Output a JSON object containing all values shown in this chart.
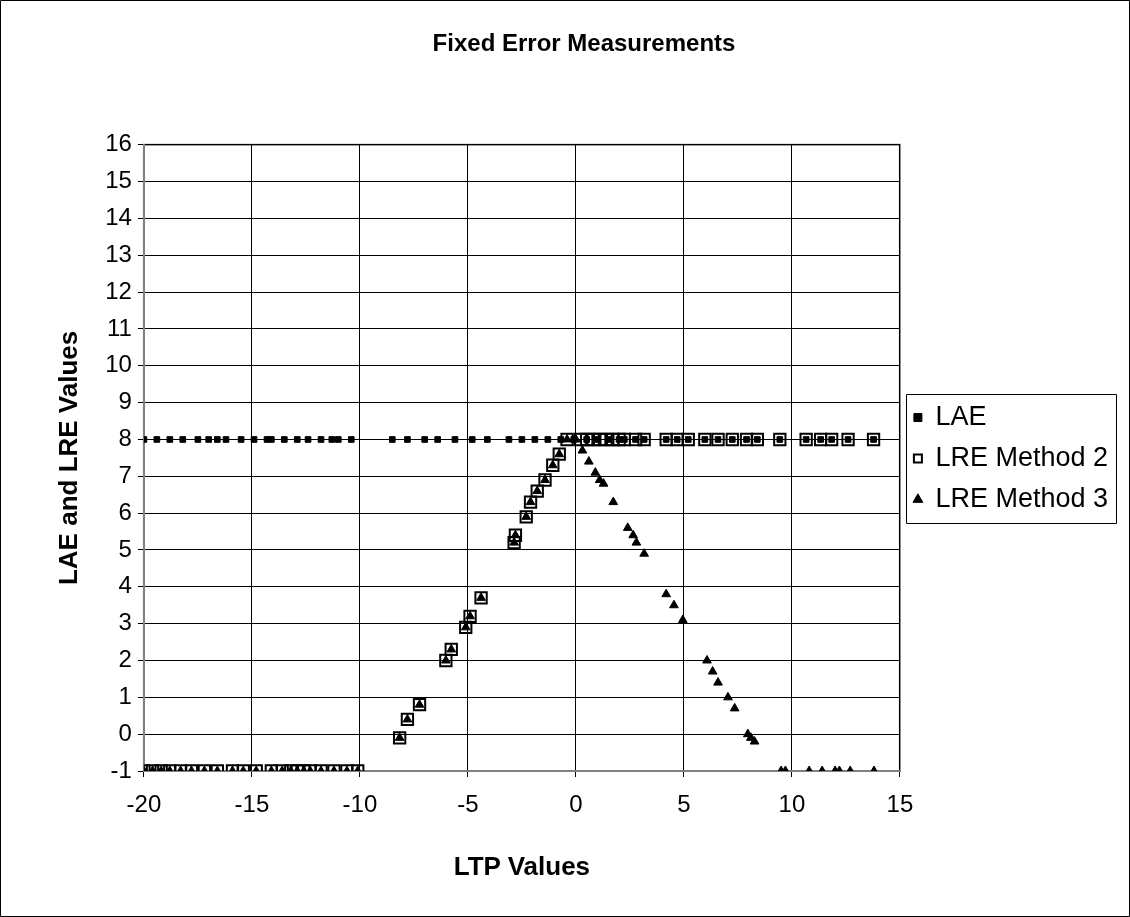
{
  "chart_data": {
    "type": "scatter",
    "title": "Fixed Error Measurements",
    "xlabel": "LTP Values",
    "ylabel": "LAE and LRE Values",
    "xlim": [
      -20,
      15
    ],
    "xticks": [
      -20,
      -15,
      -10,
      -5,
      0,
      5,
      10,
      15
    ],
    "ylim": [
      -1,
      16
    ],
    "yticks": [
      -1,
      0,
      1,
      2,
      3,
      4,
      5,
      6,
      7,
      8,
      9,
      10,
      11,
      12,
      13,
      14,
      15,
      16
    ],
    "grid": true,
    "legend": "right",
    "series": [
      {
        "name": "LAE",
        "color": "#000000",
        "marker": "square",
        "x": [
          -20,
          -19.4,
          -18.8,
          -18.2,
          -17.5,
          -17.0,
          -16.6,
          -16.2,
          -15.5,
          -14.9,
          -14.3,
          -14.1,
          -13.5,
          -12.9,
          -12.4,
          -11.8,
          -11.3,
          -11.0,
          -10.4,
          -8.5,
          -7.8,
          -7.0,
          -6.4,
          -5.6,
          -4.8,
          -4.1,
          -3.1,
          -2.5,
          -1.9,
          -1.3,
          -0.7,
          -0.1,
          0.5,
          1,
          1.5,
          2,
          2.24,
          2.76,
          3.16,
          4.18,
          4.69,
          5.2,
          5.97,
          6.58,
          7.24,
          7.9,
          8.4,
          9.44,
          10.66,
          11.33,
          11.84,
          12.6,
          13.78
        ],
        "values": [
          8,
          8,
          8,
          8,
          8,
          8,
          8,
          8,
          8,
          8,
          8,
          8,
          8,
          8,
          8,
          8,
          8,
          8,
          8,
          8,
          8,
          8,
          8,
          8,
          8,
          8,
          8,
          8,
          8,
          8,
          8,
          8,
          8,
          8,
          8,
          8,
          8,
          8,
          8,
          8,
          8,
          8,
          8,
          8,
          8,
          8,
          8,
          8,
          8,
          8,
          8,
          8,
          8
        ]
      },
      {
        "name": "LRE Method 2",
        "color": "#000000",
        "marker": "square",
        "x": [
          -20,
          -19.6,
          -19.2,
          -18.8,
          -18.3,
          -17.8,
          -17.2,
          -16.6,
          -15.9,
          -15.4,
          -14.8,
          -14.1,
          -13.6,
          -13.2,
          -12.9,
          -12.6,
          -12.3,
          -11.8,
          -11.2,
          -10.6,
          -10.1,
          -8.16,
          -7.8,
          -7.24,
          -6.02,
          -5.77,
          -5.1,
          -4.9,
          -4.39,
          -2.86,
          -2.8,
          -2.3,
          -2.1,
          -1.79,
          -1.43,
          -1.07,
          -0.77,
          -0.41,
          0.2,
          0.5,
          0.8,
          1.1,
          1.4,
          1.7,
          2.0,
          2.24,
          2.76,
          3.16,
          4.18,
          4.69,
          5.2,
          5.97,
          6.58,
          7.24,
          7.9,
          8.4,
          9.44,
          10.66,
          11.33,
          11.84,
          12.6,
          13.78
        ],
        "values": [
          -1,
          -1,
          -1,
          -1,
          -1,
          -1,
          -1,
          -1,
          -1,
          -1,
          -1,
          -1,
          -1,
          -1,
          -1,
          -1,
          -1,
          -1,
          -1,
          -1,
          -1,
          -0.1,
          0.4,
          0.8,
          2,
          2.3,
          2.9,
          3.2,
          3.7,
          5.2,
          5.4,
          5.9,
          6.3,
          6.6,
          6.9,
          7.3,
          7.6,
          8,
          8,
          8,
          8,
          8,
          8,
          8,
          8,
          8,
          8,
          8,
          8,
          8,
          8,
          8,
          8,
          8,
          8,
          8,
          8,
          8,
          8,
          8,
          8,
          8
        ]
      },
      {
        "name": "LRE Method 3",
        "color": "#000000",
        "marker": "triangle",
        "x": [
          -20,
          -19.6,
          -19.2,
          -18.8,
          -18.3,
          -17.8,
          -17.2,
          -16.6,
          -15.9,
          -15.4,
          -14.8,
          -14.1,
          -13.6,
          -13.2,
          -12.9,
          -12.6,
          -12.3,
          -11.8,
          -11.2,
          -10.6,
          -10.1,
          -8.16,
          -7.8,
          -7.24,
          -6.02,
          -5.77,
          -5.1,
          -4.9,
          -4.39,
          -2.86,
          -2.8,
          -2.3,
          -2.1,
          -1.79,
          -1.43,
          -1.07,
          -0.77,
          -0.41,
          0,
          0.3,
          0.6,
          0.9,
          1.1,
          1.28,
          1.73,
          2.4,
          2.65,
          2.8,
          3.16,
          4.18,
          4.54,
          4.95,
          6.07,
          6.33,
          6.58,
          7.04,
          7.35,
          7.96,
          8.1,
          8.27,
          9.5,
          9.7,
          10.8,
          11.4,
          12.0,
          12.2,
          12.7,
          13.8
        ],
        "values": [
          -1,
          -1,
          -1,
          -1,
          -1,
          -1,
          -1,
          -1,
          -1,
          -1,
          -1,
          -1,
          -1,
          -1,
          -1,
          -1,
          -1,
          -1,
          -1,
          -1,
          -1,
          -0.1,
          0.4,
          0.8,
          2,
          2.3,
          2.9,
          3.2,
          3.7,
          5.2,
          5.4,
          5.9,
          6.3,
          6.6,
          6.9,
          7.3,
          7.6,
          8,
          8,
          7.7,
          7.4,
          7.1,
          6.9,
          6.8,
          6.3,
          5.6,
          5.4,
          5.2,
          4.9,
          3.8,
          3.5,
          3.1,
          2,
          1.7,
          1.4,
          1,
          0.7,
          0,
          -0.1,
          -0.2,
          -1,
          -1,
          -1,
          -1,
          -1,
          -1,
          -1,
          -1
        ]
      }
    ]
  }
}
